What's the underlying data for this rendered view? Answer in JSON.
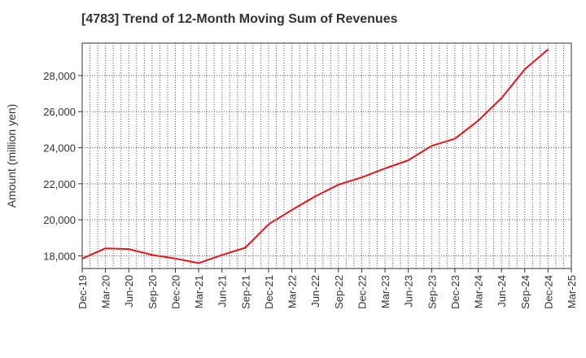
{
  "chart_data": {
    "type": "line",
    "title": "[4783]  Trend of 12-Month Moving Sum of Revenues",
    "ylabel": "Amount (million yen)",
    "xlabel": "",
    "categories": [
      "Dec-19",
      "Mar-20",
      "Jun-20",
      "Sep-20",
      "Dec-20",
      "Mar-21",
      "Jun-21",
      "Sep-21",
      "Dec-21",
      "Mar-22",
      "Jun-22",
      "Sep-22",
      "Dec-22",
      "Mar-23",
      "Jun-23",
      "Sep-23",
      "Dec-23",
      "Mar-24",
      "Jun-24",
      "Sep-24",
      "Dec-24",
      "Mar-25"
    ],
    "series": [
      {
        "color": "#e8141c",
        "values": [
          17850,
          18420,
          18380,
          18050,
          17850,
          17600,
          18050,
          18450,
          19750,
          20550,
          21300,
          21950,
          22350,
          22850,
          23300,
          24100,
          24500,
          25500,
          26750,
          28350,
          29450,
          null
        ]
      }
    ],
    "ylim": [
      17300,
      29800
    ],
    "yticks": [
      18000,
      20000,
      22000,
      24000,
      26000,
      28000
    ],
    "ytick_labels": [
      "18,000",
      "20,000",
      "22,000",
      "24,000",
      "26,000",
      "28,000"
    ],
    "grid": true,
    "grid_style": "dotted"
  }
}
